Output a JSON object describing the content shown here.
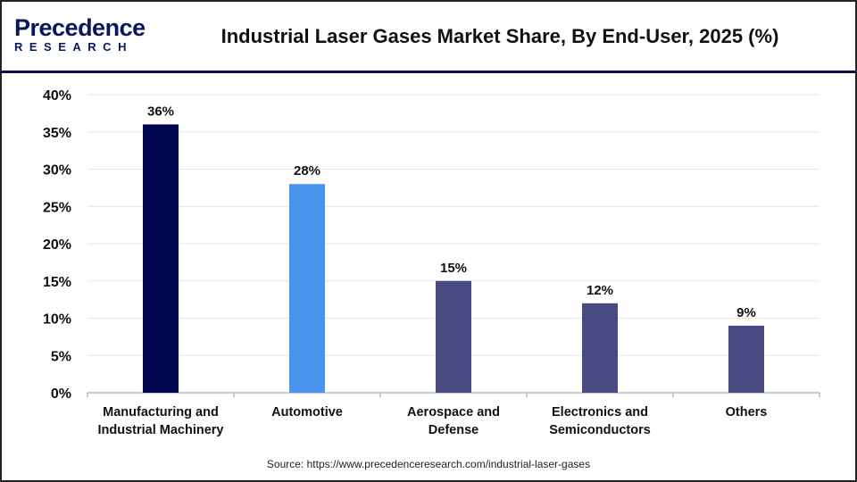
{
  "header": {
    "logo_top": "Precedence",
    "logo_bottom": "RESEARCH",
    "title": "Industrial Laser Gases Market Share, By End-User, 2025 (%)"
  },
  "chart_data": {
    "type": "bar",
    "title": "Industrial Laser Gases Market Share, By End-User, 2025 (%)",
    "categories": [
      [
        "Manufacturing and",
        "Industrial Machinery"
      ],
      [
        "Automotive"
      ],
      [
        "Aerospace and",
        "Defense"
      ],
      [
        "Electronics and",
        "Semiconductors"
      ],
      [
        "Others"
      ]
    ],
    "values": [
      36,
      28,
      15,
      12,
      9
    ],
    "data_labels": [
      "36%",
      "28%",
      "15%",
      "12%",
      "9%"
    ],
    "colors": [
      "#00074f",
      "#4a94ee",
      "#474b82",
      "#474b82",
      "#474b82"
    ],
    "ylim": [
      0,
      40
    ],
    "yticks": [
      "0%",
      "5%",
      "10%",
      "15%",
      "20%",
      "25%",
      "30%",
      "35%",
      "40%"
    ],
    "grid": true,
    "xlabel": "",
    "ylabel": ""
  },
  "footer": {
    "source": "Source: https://www.precedenceresearch.com/industrial-laser-gases"
  }
}
